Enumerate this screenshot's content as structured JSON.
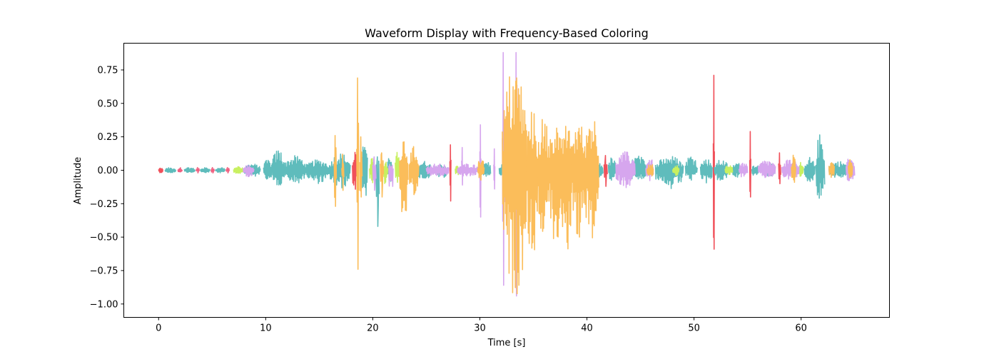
{
  "chart_data": {
    "type": "line",
    "title": "Waveform Display with Frequency-Based Coloring",
    "xlabel": "Time [s]",
    "ylabel": "Amplitude",
    "xlim": [
      -3.25,
      68.25
    ],
    "ylim": [
      -1.1,
      0.95
    ],
    "xticks": [
      0,
      10,
      20,
      30,
      40,
      50,
      60
    ],
    "xtick_labels": [
      "0",
      "10",
      "20",
      "30",
      "40",
      "50",
      "60"
    ],
    "yticks": [
      0.75,
      0.5,
      0.25,
      0.0,
      -0.25,
      -0.5,
      -0.75,
      -1.0
    ],
    "ytick_labels": [
      "0.75",
      "0.50",
      "0.25",
      "0.00",
      "−0.25",
      "−0.50",
      "−0.75",
      "−1.00"
    ],
    "grid": false,
    "legend": "none",
    "colors": {
      "red": "#f0505a",
      "pink": "#f06080",
      "teal": "#5fbcbc",
      "lime": "#c8f060",
      "violet": "#d6a6ee",
      "orange": "#fbbd5a"
    },
    "series": [
      {
        "color": "red",
        "segments": [
          {
            "x": [
              0.0,
              0.4
            ],
            "ymin": -0.02,
            "ymax": 0.02
          },
          {
            "x": [
              18.1,
              18.5
            ],
            "ymin": -0.17,
            "ymax": 0.16
          },
          {
            "x": [
              27.2,
              27.3
            ],
            "ymin": -0.23,
            "ymax": 0.19
          },
          {
            "x": [
              41.6,
              41.9
            ],
            "ymin": -0.12,
            "ymax": 0.11
          },
          {
            "x": [
              51.8,
              51.9
            ],
            "ymin": -0.59,
            "ymax": 0.71
          },
          {
            "x": [
              55.2,
              55.3
            ],
            "ymin": -0.2,
            "ymax": 0.29
          },
          {
            "x": [
              57.9,
              58.1
            ],
            "ymin": -0.1,
            "ymax": 0.13
          }
        ]
      },
      {
        "color": "pink",
        "segments": [
          {
            "x": [
              1.8,
              2.2
            ],
            "ymin": -0.02,
            "ymax": 0.02
          },
          {
            "x": [
              3.5,
              3.8
            ],
            "ymin": -0.02,
            "ymax": 0.02
          },
          {
            "x": [
              4.9,
              5.2
            ],
            "ymin": -0.02,
            "ymax": 0.02
          },
          {
            "x": [
              6.3,
              6.6
            ],
            "ymin": -0.02,
            "ymax": 0.02
          }
        ]
      },
      {
        "color": "teal",
        "segments": [
          {
            "x": [
              0.6,
              1.6
            ],
            "ymin": -0.02,
            "ymax": 0.02
          },
          {
            "x": [
              2.4,
              3.4
            ],
            "ymin": -0.02,
            "ymax": 0.02
          },
          {
            "x": [
              3.9,
              4.8
            ],
            "ymin": -0.02,
            "ymax": 0.02
          },
          {
            "x": [
              5.3,
              6.2
            ],
            "ymin": -0.02,
            "ymax": 0.02
          },
          {
            "x": [
              8.0,
              9.5
            ],
            "ymin": -0.05,
            "ymax": 0.05
          },
          {
            "x": [
              9.8,
              10.6
            ],
            "ymin": -0.08,
            "ymax": 0.08
          },
          {
            "x": [
              10.6,
              11.8
            ],
            "ymin": -0.13,
            "ymax": 0.16
          },
          {
            "x": [
              11.8,
              13.8
            ],
            "ymin": -0.1,
            "ymax": 0.11
          },
          {
            "x": [
              13.8,
              16.0
            ],
            "ymin": -0.1,
            "ymax": 0.08
          },
          {
            "x": [
              16.0,
              17.9
            ],
            "ymin": -0.14,
            "ymax": 0.13
          },
          {
            "x": [
              19.0,
              19.5
            ],
            "ymin": -0.25,
            "ymax": 0.25
          },
          {
            "x": [
              20.3,
              20.6
            ],
            "ymin": -0.42,
            "ymax": 0.1
          },
          {
            "x": [
              21.4,
              21.8
            ],
            "ymin": -0.1,
            "ymax": 0.15
          },
          {
            "x": [
              24.1,
              25.5
            ],
            "ymin": -0.07,
            "ymax": 0.07
          },
          {
            "x": [
              25.8,
              27.0
            ],
            "ymin": -0.06,
            "ymax": 0.05
          },
          {
            "x": [
              30.3,
              31.0
            ],
            "ymin": -0.07,
            "ymax": 0.07
          },
          {
            "x": [
              31.8,
              32.5
            ],
            "ymin": -0.05,
            "ymax": 0.05
          },
          {
            "x": [
              34.4,
              35.2
            ],
            "ymin": -0.08,
            "ymax": 0.1
          },
          {
            "x": [
              36.6,
              37.4
            ],
            "ymin": -0.06,
            "ymax": 0.08
          },
          {
            "x": [
              38.3,
              39.0
            ],
            "ymin": -0.06,
            "ymax": 0.06
          },
          {
            "x": [
              40.2,
              41.5
            ],
            "ymin": -0.08,
            "ymax": 0.08
          },
          {
            "x": [
              42.0,
              42.7
            ],
            "ymin": -0.09,
            "ymax": 0.1
          },
          {
            "x": [
              44.0,
              45.5
            ],
            "ymin": -0.09,
            "ymax": 0.11
          },
          {
            "x": [
              46.4,
              49.0
            ],
            "ymin": -0.15,
            "ymax": 0.11
          },
          {
            "x": [
              49.2,
              50.3
            ],
            "ymin": -0.08,
            "ymax": 0.12
          },
          {
            "x": [
              50.6,
              51.7
            ],
            "ymin": -0.1,
            "ymax": 0.09
          },
          {
            "x": [
              51.9,
              53.2
            ],
            "ymin": -0.09,
            "ymax": 0.08
          },
          {
            "x": [
              53.6,
              54.4
            ],
            "ymin": -0.06,
            "ymax": 0.06
          },
          {
            "x": [
              55.4,
              56.1
            ],
            "ymin": -0.05,
            "ymax": 0.05
          },
          {
            "x": [
              56.6,
              57.5
            ],
            "ymin": -0.05,
            "ymax": 0.05
          },
          {
            "x": [
              60.3,
              61.3
            ],
            "ymin": -0.09,
            "ymax": 0.1
          },
          {
            "x": [
              61.4,
              62.2
            ],
            "ymin": -0.25,
            "ymax": 0.28
          },
          {
            "x": [
              62.6,
              64.4
            ],
            "ymin": -0.06,
            "ymax": 0.07
          }
        ]
      },
      {
        "color": "lime",
        "segments": [
          {
            "x": [
              7.0,
              7.9
            ],
            "ymin": -0.03,
            "ymax": 0.03
          },
          {
            "x": [
              19.7,
              20.2
            ],
            "ymin": -0.1,
            "ymax": 0.1
          },
          {
            "x": [
              21.0,
              21.4
            ],
            "ymin": -0.12,
            "ymax": 0.08
          },
          {
            "x": [
              22.1,
              22.6
            ],
            "ymin": -0.15,
            "ymax": 0.15
          },
          {
            "x": [
              27.7,
              28.1
            ],
            "ymin": -0.04,
            "ymax": 0.04
          },
          {
            "x": [
              48.0,
              48.6
            ],
            "ymin": -0.04,
            "ymax": 0.04
          },
          {
            "x": [
              52.9,
              53.6
            ],
            "ymin": -0.04,
            "ymax": 0.04
          },
          {
            "x": [
              59.7,
              60.2
            ],
            "ymin": -0.06,
            "ymax": 0.06
          }
        ]
      },
      {
        "color": "violet",
        "segments": [
          {
            "x": [
              7.9,
              8.9
            ],
            "ymin": -0.05,
            "ymax": 0.04
          },
          {
            "x": [
              20.0,
              20.3
            ],
            "ymin": -0.15,
            "ymax": 0.1
          },
          {
            "x": [
              21.5,
              21.9
            ],
            "ymin": -0.22,
            "ymax": 0.08
          },
          {
            "x": [
              25.0,
              27.1
            ],
            "ymin": -0.05,
            "ymax": 0.05
          },
          {
            "x": [
              27.9,
              29.9
            ],
            "ymin": -0.05,
            "ymax": 0.05
          },
          {
            "x": [
              28.3,
              28.4
            ],
            "ymin": -0.11,
            "ymax": 0.17
          },
          {
            "x": [
              30.0,
              30.1
            ],
            "ymin": -0.35,
            "ymax": 0.34
          },
          {
            "x": [
              31.3,
              31.4
            ],
            "ymin": -0.14,
            "ymax": 0.16
          },
          {
            "x": [
              32.1,
              32.3
            ],
            "ymin": -0.86,
            "ymax": 0.88
          },
          {
            "x": [
              33.3,
              33.5
            ],
            "ymin": -0.94,
            "ymax": 0.88
          },
          {
            "x": [
              42.7,
              44.5
            ],
            "ymin": -0.13,
            "ymax": 0.14
          },
          {
            "x": [
              45.5,
              46.2
            ],
            "ymin": -0.08,
            "ymax": 0.1
          },
          {
            "x": [
              54.2,
              55.0
            ],
            "ymin": -0.06,
            "ymax": 0.06
          },
          {
            "x": [
              56.0,
              57.6
            ],
            "ymin": -0.06,
            "ymax": 0.08
          },
          {
            "x": [
              58.2,
              59.8
            ],
            "ymin": -0.07,
            "ymax": 0.09
          },
          {
            "x": [
              64.2,
              65.0
            ],
            "ymin": -0.1,
            "ymax": 0.1
          }
        ]
      },
      {
        "color": "orange",
        "segments": [
          {
            "x": [
              16.4,
              16.6
            ],
            "ymin": -0.27,
            "ymax": 0.26
          },
          {
            "x": [
              17.1,
              17.3
            ],
            "ymin": -0.15,
            "ymax": 0.12
          },
          {
            "x": [
              18.5,
              18.7
            ],
            "ymin": -0.74,
            "ymax": 0.69
          },
          {
            "x": [
              18.8,
              19.0
            ],
            "ymin": -0.2,
            "ymax": 0.25
          },
          {
            "x": [
              20.7,
              21.0
            ],
            "ymin": -0.2,
            "ymax": 0.13
          },
          {
            "x": [
              22.5,
              23.3
            ],
            "ymin": -0.42,
            "ymax": 0.22
          },
          {
            "x": [
              23.4,
              24.3
            ],
            "ymin": -0.2,
            "ymax": 0.18
          },
          {
            "x": [
              29.8,
              30.4
            ],
            "ymin": -0.08,
            "ymax": 0.1
          },
          {
            "x": [
              32.1,
              34.4
            ],
            "ymin": -0.95,
            "ymax": 0.8
          },
          {
            "x": [
              34.4,
              35.4
            ],
            "ymin": -0.69,
            "ymax": 0.46
          },
          {
            "x": [
              35.4,
              36.5
            ],
            "ymin": -0.54,
            "ymax": 0.4
          },
          {
            "x": [
              36.5,
              37.6
            ],
            "ymin": -0.59,
            "ymax": 0.4
          },
          {
            "x": [
              37.6,
              38.6
            ],
            "ymin": -0.62,
            "ymax": 0.42
          },
          {
            "x": [
              38.6,
              39.8
            ],
            "ymin": -0.53,
            "ymax": 0.39
          },
          {
            "x": [
              39.8,
              41.1
            ],
            "ymin": -0.55,
            "ymax": 0.45
          },
          {
            "x": [
              45.6,
              46.2
            ],
            "ymin": -0.06,
            "ymax": 0.06
          },
          {
            "x": [
              59.1,
              59.5
            ],
            "ymin": -0.1,
            "ymax": 0.12
          },
          {
            "x": [
              62.6,
              63.1
            ],
            "ymin": -0.06,
            "ymax": 0.08
          },
          {
            "x": [
              64.4,
              64.8
            ],
            "ymin": -0.08,
            "ymax": 0.09
          }
        ]
      }
    ]
  }
}
